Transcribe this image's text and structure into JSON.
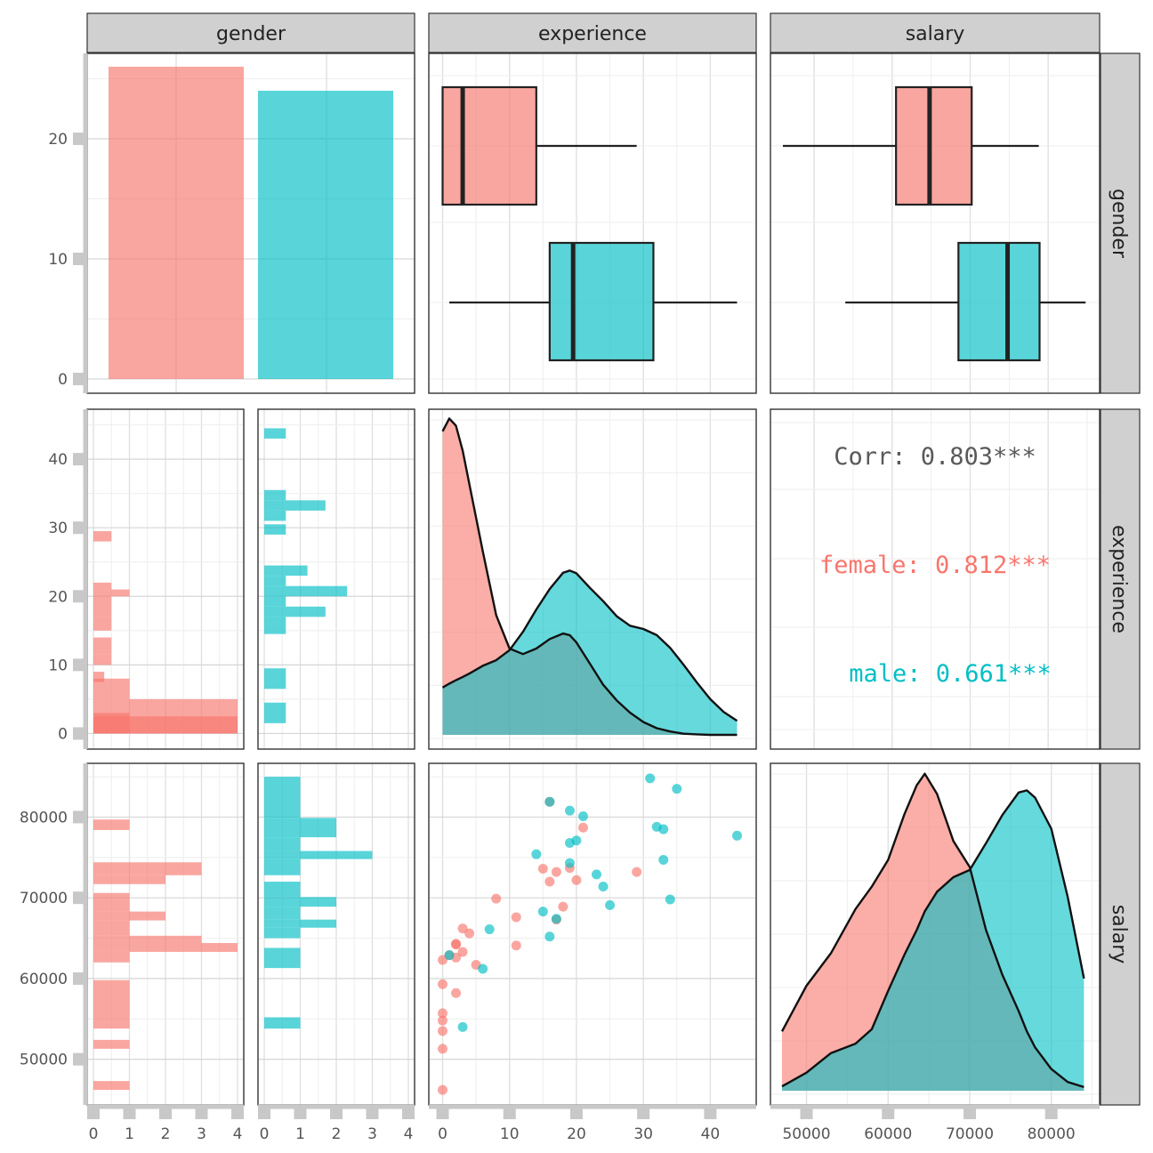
{
  "colors": {
    "female": "#F8766D",
    "male": "#00BFC4",
    "corr_overall": "#595959",
    "strip_bg": "#D0D0D0"
  },
  "strips": {
    "columns": [
      "gender",
      "experience",
      "salary"
    ],
    "rows": [
      "gender",
      "experience",
      "salary"
    ]
  },
  "axes": {
    "count_ticks": [
      "0",
      "10",
      "20"
    ],
    "experience_ticks": [
      "0",
      "10",
      "20",
      "30",
      "40"
    ],
    "salary_ticks": [
      "50000",
      "60000",
      "70000",
      "80000"
    ],
    "hist_count_ticks": [
      "0",
      "1",
      "2",
      "3",
      "4"
    ]
  },
  "chart_data": [
    {
      "type": "bar",
      "panel": "gender-gender",
      "categories": [
        "female",
        "male"
      ],
      "values": [
        26,
        24
      ],
      "ylim": [
        0,
        27
      ]
    },
    {
      "type": "boxplot",
      "panel": "experience-by-gender",
      "xlim": [
        -0.2,
        45
      ],
      "series": [
        {
          "name": "female",
          "whisker_low": 0,
          "q1": 0,
          "median": 3,
          "q3": 14,
          "whisker_high": 29
        },
        {
          "name": "male",
          "whisker_low": 1,
          "q1": 16,
          "median": 19.5,
          "q3": 31.5,
          "whisker_high": 44
        }
      ]
    },
    {
      "type": "boxplot",
      "panel": "salary-by-gender",
      "xlim": [
        46000,
        85000
      ],
      "series": [
        {
          "name": "female",
          "whisker_low": 46000,
          "q1": 60500,
          "median": 64800,
          "q3": 70200,
          "whisker_high": 78800
        },
        {
          "name": "male",
          "whisker_low": 54000,
          "q1": 68500,
          "median": 74800,
          "q3": 78900,
          "whisker_high": 84800
        }
      ]
    },
    {
      "type": "histogram",
      "panel": "experience-female",
      "xlim": [
        0,
        4.3
      ],
      "ylim": [
        -1.5,
        46.5
      ],
      "bins": [
        [
          0,
          5,
          4
        ],
        [
          0,
          2.5,
          4
        ],
        [
          0,
          3,
          1
        ],
        [
          5,
          8,
          1
        ],
        [
          5,
          6.5,
          0
        ],
        [
          7.5,
          9,
          0.3
        ],
        [
          10,
          11.5,
          0.5
        ],
        [
          11.5,
          14,
          0.5
        ],
        [
          15,
          17,
          0.5
        ],
        [
          17,
          19,
          0.5
        ],
        [
          19,
          20,
          0.5
        ],
        [
          20,
          21,
          1
        ],
        [
          21,
          22,
          0.5
        ],
        [
          28,
          29.5,
          0.5
        ]
      ]
    },
    {
      "type": "histogram",
      "panel": "experience-male",
      "xlim": [
        0,
        4.3
      ],
      "ylim": [
        -1.5,
        46.5
      ],
      "bins": [
        [
          1.5,
          4.5,
          0.6
        ],
        [
          6.5,
          9.5,
          0.6
        ],
        [
          14.5,
          17,
          0.6
        ],
        [
          17,
          18.5,
          1.7
        ],
        [
          18.5,
          20,
          0.6
        ],
        [
          20,
          21.5,
          2.3
        ],
        [
          21.5,
          23,
          0.6
        ],
        [
          23,
          24.5,
          1.2
        ],
        [
          29,
          30.5,
          0.6
        ],
        [
          31,
          32.5,
          0.6
        ],
        [
          32.5,
          34,
          1.7
        ],
        [
          34,
          35.5,
          0.6
        ],
        [
          43,
          44.5,
          0.6
        ]
      ]
    },
    {
      "type": "histogram",
      "panel": "salary-female",
      "xlim": [
        0,
        4.3
      ],
      "ylim": [
        45000,
        86000
      ],
      "bins": [
        [
          46200,
          47300,
          1
        ],
        [
          51300,
          52400,
          1
        ],
        [
          53800,
          59800,
          1
        ],
        [
          62000,
          63300,
          1
        ],
        [
          63300,
          64400,
          4
        ],
        [
          64400,
          65300,
          3
        ],
        [
          65300,
          67200,
          1
        ],
        [
          67200,
          68300,
          2
        ],
        [
          68300,
          70600,
          1
        ],
        [
          71700,
          72800,
          2
        ],
        [
          72800,
          74400,
          3
        ],
        [
          78400,
          79700,
          1
        ]
      ]
    },
    {
      "type": "histogram",
      "panel": "salary-male",
      "xlim": [
        0,
        4.3
      ],
      "ylim": [
        45000,
        86000
      ],
      "bins": [
        [
          53800,
          55200,
          1
        ],
        [
          61300,
          63800,
          1
        ],
        [
          65000,
          66300,
          1
        ],
        [
          66300,
          67300,
          2
        ],
        [
          67300,
          68900,
          1
        ],
        [
          68900,
          70100,
          2
        ],
        [
          70100,
          72000,
          1
        ],
        [
          72800,
          74800,
          1
        ],
        [
          74800,
          75800,
          3
        ],
        [
          75800,
          77500,
          1
        ],
        [
          77500,
          79900,
          2
        ],
        [
          79900,
          85000,
          1
        ]
      ]
    },
    {
      "type": "density",
      "panel": "experience-density",
      "xlim": [
        -0.2,
        45
      ],
      "ylim": [
        0,
        0.0575
      ],
      "x": [
        0,
        1,
        2,
        3,
        4,
        6,
        8,
        10,
        12,
        14,
        16,
        18,
        19,
        20,
        22,
        24,
        26,
        28,
        30,
        32,
        34,
        36,
        38,
        40,
        42,
        44
      ],
      "series": [
        {
          "name": "female",
          "values": [
            0.0545,
            0.0568,
            0.0555,
            0.051,
            0.045,
            0.033,
            0.0215,
            0.0155,
            0.0145,
            0.0155,
            0.0172,
            0.0182,
            0.0179,
            0.0166,
            0.0128,
            0.009,
            0.0062,
            0.004,
            0.0023,
            0.0012,
            0.0006,
            0.0002,
            0.0001,
            0.0,
            0.0,
            0.0
          ]
        },
        {
          "name": "male",
          "values": [
            0.0085,
            0.0092,
            0.0098,
            0.0104,
            0.011,
            0.0124,
            0.0134,
            0.0152,
            0.0185,
            0.0225,
            0.0262,
            0.0291,
            0.0295,
            0.029,
            0.0264,
            0.024,
            0.0213,
            0.0196,
            0.019,
            0.0179,
            0.0156,
            0.0126,
            0.0094,
            0.0064,
            0.0041,
            0.0025
          ]
        }
      ]
    },
    {
      "type": "scatter",
      "panel": "salary-vs-experience",
      "xlim": [
        -0.2,
        45
      ],
      "ylim": [
        45000,
        86000
      ],
      "series": [
        {
          "name": "female",
          "points": [
            [
              0,
              46200
            ],
            [
              0,
              51300
            ],
            [
              0,
              53500
            ],
            [
              0,
              55700
            ],
            [
              0,
              54800
            ],
            [
              0,
              59300
            ],
            [
              0,
              62300
            ],
            [
              1,
              62900
            ],
            [
              2,
              64300
            ],
            [
              2,
              64200
            ],
            [
              2,
              62600
            ],
            [
              3,
              63300
            ],
            [
              3,
              66200
            ],
            [
              4,
              65600
            ],
            [
              5,
              61700
            ],
            [
              2,
              58200
            ],
            [
              8,
              69900
            ],
            [
              11,
              67600
            ],
            [
              11,
              64100
            ],
            [
              16,
              72000
            ],
            [
              15,
              73600
            ],
            [
              17,
              73200
            ],
            [
              19,
              73700
            ],
            [
              20,
              72200
            ],
            [
              21,
              78700
            ],
            [
              16,
              81900
            ],
            [
              17,
              67300
            ],
            [
              18,
              68900
            ],
            [
              29,
              73200
            ]
          ]
        },
        {
          "name": "male",
          "points": [
            [
              1,
              62900
            ],
            [
              3,
              54000
            ],
            [
              6,
              61200
            ],
            [
              7,
              66100
            ],
            [
              14,
              75400
            ],
            [
              15,
              68300
            ],
            [
              16,
              65200
            ],
            [
              17,
              67400
            ],
            [
              19,
              74300
            ],
            [
              19,
              76800
            ],
            [
              20,
              77100
            ],
            [
              21,
              80100
            ],
            [
              19,
              80800
            ],
            [
              23,
              72900
            ],
            [
              24,
              71400
            ],
            [
              25,
              69100
            ],
            [
              31,
              84800
            ],
            [
              32,
              78800
            ],
            [
              33,
              78500
            ],
            [
              33,
              74700
            ],
            [
              34,
              69800
            ],
            [
              35,
              83500
            ],
            [
              44,
              77700
            ],
            [
              16,
              81900
            ]
          ]
        }
      ]
    },
    {
      "type": "density",
      "panel": "salary-density",
      "xlim": [
        45800,
        85700
      ],
      "ylim": [
        0,
        4.45e-05
      ],
      "x": [
        47000,
        50000,
        53000,
        56000,
        58000,
        60000,
        62000,
        63500,
        64500,
        66000,
        68000,
        70000,
        72000,
        74000,
        76000,
        77000,
        78000,
        80000,
        82000,
        84000
      ],
      "series": [
        {
          "name": "female",
          "values": [
            8.2e-06,
            1.45e-05,
            1.9e-05,
            2.51e-05,
            2.82e-05,
            3.19e-05,
            3.82e-05,
            4.22e-05,
            4.38e-05,
            4.1e-05,
            3.45e-05,
            3.09e-05,
            2.22e-05,
            1.6e-05,
            1.1e-05,
            8.2e-06,
            6e-06,
            3e-06,
            1.2e-06,
            5e-07
          ]
        },
        {
          "name": "male",
          "values": [
            6e-07,
            2.5e-06,
            5.2e-06,
            6.5e-06,
            8.5e-06,
            1.38e-05,
            1.88e-05,
            2.22e-05,
            2.48e-05,
            2.75e-05,
            2.95e-05,
            3.05e-05,
            3.42e-05,
            3.81e-05,
            4.12e-05,
            4.15e-05,
            4.05e-05,
            3.62e-05,
            2.68e-05,
            1.55e-05
          ]
        }
      ]
    },
    {
      "type": "correlation",
      "panel": "experience-salary-corr",
      "lines": [
        {
          "label": "Corr: 0.803***",
          "color": "#595959"
        },
        {
          "label": "female: 0.812***",
          "color": "#F8766D"
        },
        {
          "label": "male: 0.661***",
          "color": "#00BFC4"
        }
      ]
    }
  ]
}
